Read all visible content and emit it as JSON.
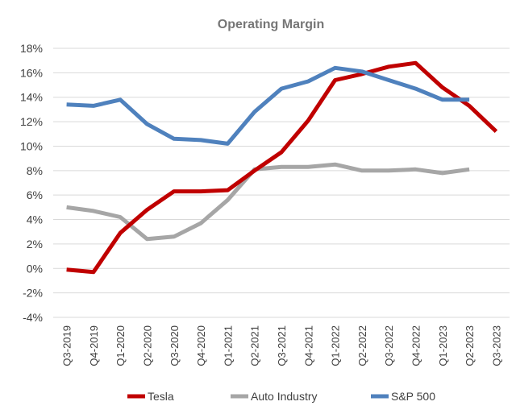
{
  "chart_data": {
    "type": "line",
    "title": "Operating Margin",
    "xlabel": "",
    "ylabel": "",
    "categories": [
      "Q3-2019",
      "Q4-2019",
      "Q1-2020",
      "Q2-2020",
      "Q3-2020",
      "Q4-2020",
      "Q1-2021",
      "Q2-2021",
      "Q3-2021",
      "Q4-2021",
      "Q1-2022",
      "Q2-2022",
      "Q3-2022",
      "Q4-2022",
      "Q1-2023",
      "Q2-2023",
      "Q3-2023"
    ],
    "ylim": [
      -4,
      18
    ],
    "yticks": [
      -4,
      -2,
      0,
      2,
      4,
      6,
      8,
      10,
      12,
      14,
      16,
      18
    ],
    "ytick_labels": [
      "-4%",
      "-2%",
      "0%",
      "2%",
      "4%",
      "6%",
      "8%",
      "10%",
      "12%",
      "14%",
      "16%",
      "18%"
    ],
    "grid": true,
    "legend_position": "bottom",
    "series": [
      {
        "name": "Tesla",
        "color": "#c00000",
        "values": [
          -0.1,
          -0.3,
          2.9,
          4.8,
          6.3,
          6.3,
          6.4,
          8.0,
          9.5,
          12.1,
          15.4,
          15.9,
          16.5,
          16.8,
          14.8,
          13.3,
          11.2
        ]
      },
      {
        "name": "Auto Industry",
        "color": "#a6a6a6",
        "values": [
          5.0,
          4.7,
          4.2,
          2.4,
          2.6,
          3.7,
          5.6,
          8.1,
          8.3,
          8.3,
          8.5,
          8.0,
          8.0,
          8.1,
          7.8,
          8.1,
          null
        ]
      },
      {
        "name": "S&P 500",
        "color": "#4f81bd",
        "values": [
          13.4,
          13.3,
          13.8,
          11.8,
          10.6,
          10.5,
          10.2,
          12.8,
          14.7,
          15.3,
          16.4,
          16.1,
          15.4,
          14.7,
          13.8,
          13.8,
          null
        ]
      }
    ]
  }
}
